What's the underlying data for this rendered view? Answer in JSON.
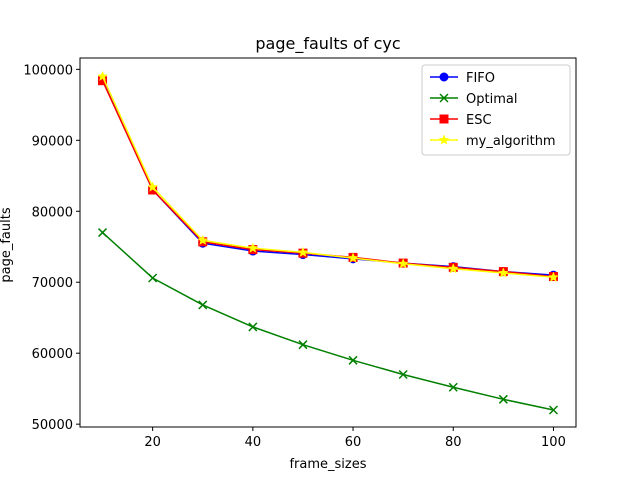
{
  "chart_data": {
    "type": "line",
    "title": "page_faults of cyc",
    "xlabel": "frame_sizes",
    "ylabel": "page_faults",
    "x": [
      10,
      20,
      30,
      40,
      50,
      60,
      70,
      80,
      90,
      100
    ],
    "xlim": [
      5.5,
      104.5
    ],
    "ylim": [
      49600,
      101600
    ],
    "xticks": [
      20,
      40,
      60,
      80,
      100
    ],
    "yticks": [
      50000,
      60000,
      70000,
      80000,
      90000,
      100000
    ],
    "grid": false,
    "legend_position": "top-right",
    "series": [
      {
        "name": "FIFO",
        "color": "#0000ff",
        "marker": "circle",
        "values": [
          98500,
          83000,
          75500,
          74400,
          73900,
          73300,
          72700,
          72200,
          71500,
          71000
        ]
      },
      {
        "name": "Optimal",
        "color": "#008000",
        "marker": "x",
        "values": [
          77000,
          70600,
          66800,
          63700,
          61200,
          59000,
          57000,
          55200,
          53500,
          52000
        ]
      },
      {
        "name": "ESC",
        "color": "#ff0000",
        "marker": "square",
        "values": [
          98400,
          83000,
          75700,
          74600,
          74100,
          73500,
          72700,
          72100,
          71500,
          70800
        ]
      },
      {
        "name": "my_algorithm",
        "color": "#ffff00",
        "marker": "star",
        "values": [
          99000,
          83400,
          75900,
          74800,
          74200,
          73400,
          72600,
          71900,
          71300,
          70700
        ]
      }
    ]
  }
}
